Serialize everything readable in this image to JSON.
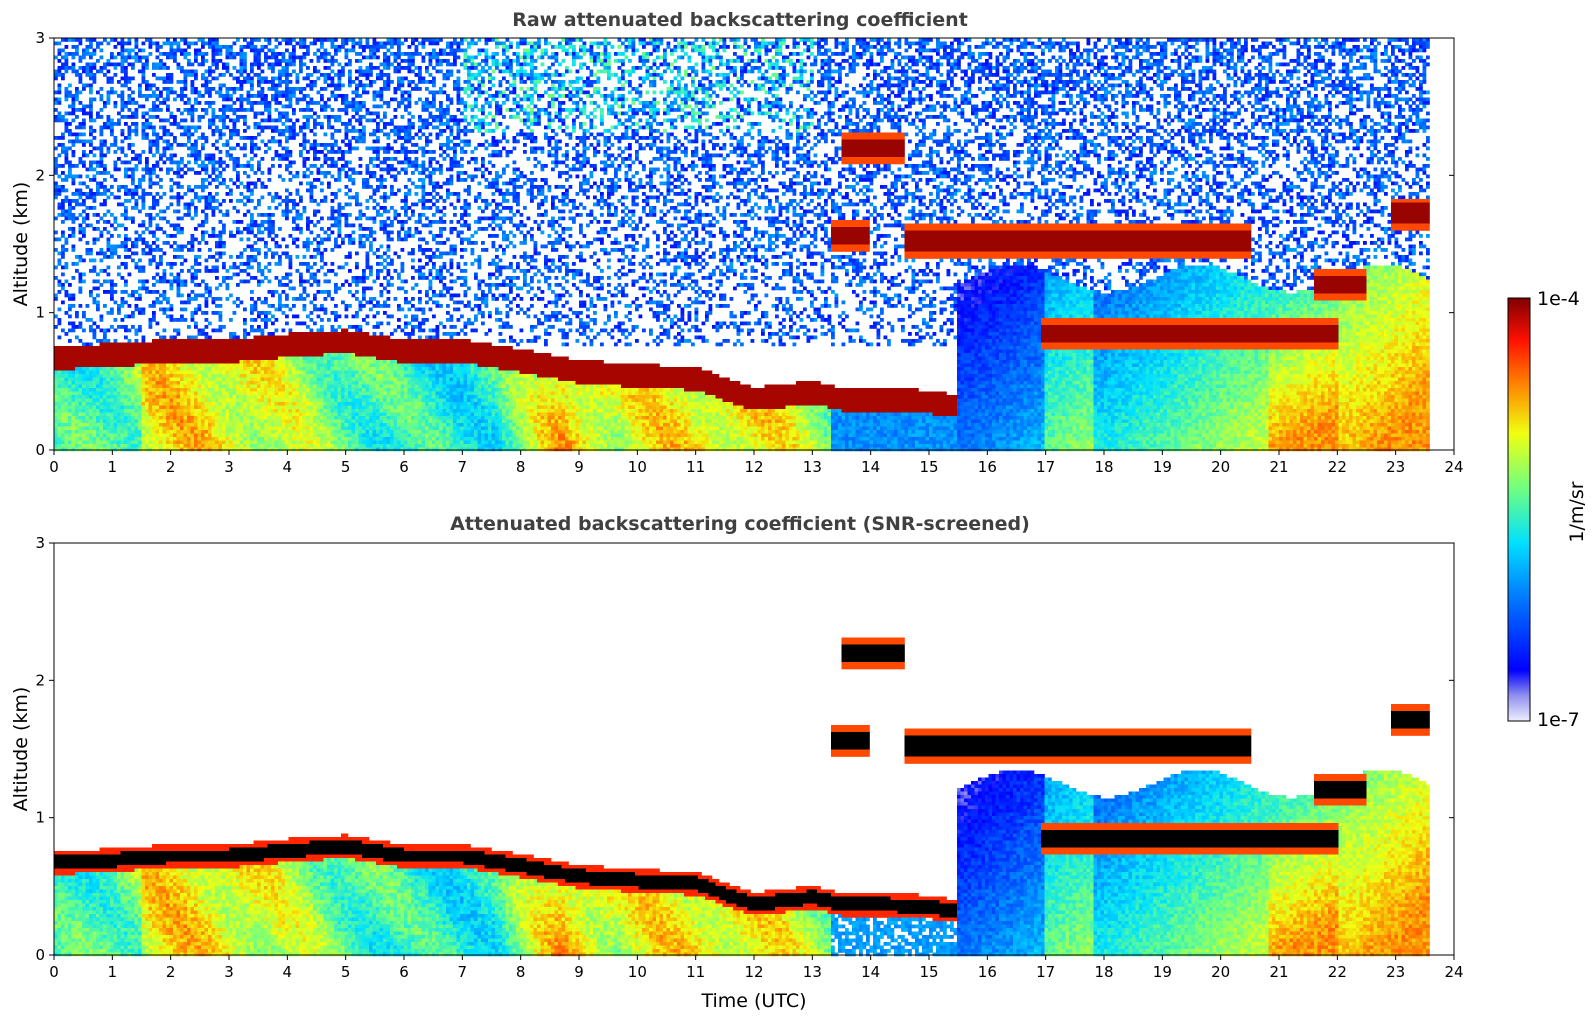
{
  "chart_data": [
    {
      "type": "heatmap",
      "title": "Raw attenuated backscattering coefficient",
      "xlabel": "",
      "ylabel": "Altitude (km)",
      "xlim": [
        0,
        24
      ],
      "ylim": [
        0,
        3
      ],
      "xticks": [
        "0",
        "1",
        "2",
        "3",
        "4",
        "5",
        "6",
        "7",
        "8",
        "9",
        "10",
        "11",
        "12",
        "13",
        "14",
        "15",
        "16",
        "17",
        "18",
        "19",
        "20",
        "21",
        "22",
        "23",
        "24"
      ],
      "yticks": [
        "0",
        "1",
        "2",
        "3"
      ],
      "data_end_time": 23.55,
      "colormap": "jet",
      "color_scale": "log",
      "cloud_base_layer_km": [
        [
          0,
          0.65
        ],
        [
          1,
          0.67
        ],
        [
          2,
          0.7
        ],
        [
          3,
          0.7
        ],
        [
          4,
          0.74
        ],
        [
          5,
          0.77
        ],
        [
          6,
          0.7
        ],
        [
          7,
          0.7
        ],
        [
          8,
          0.63
        ],
        [
          9,
          0.55
        ],
        [
          10,
          0.52
        ],
        [
          11,
          0.5
        ],
        [
          12,
          0.35
        ],
        [
          13,
          0.4
        ],
        [
          13.5,
          0.35
        ],
        [
          14,
          0.35
        ],
        [
          15,
          0.33
        ],
        [
          15.4,
          0.3
        ]
      ],
      "elevated_layers_km": [
        {
          "t0": 13.5,
          "t1": 14.6,
          "alt_km": 2.2
        },
        {
          "t0": 13.3,
          "t1": 14.0,
          "alt_km": 1.56
        },
        {
          "t0": 14.6,
          "t1": 20.5,
          "alt_km": 1.52
        },
        {
          "t0": 21.6,
          "t1": 22.5,
          "alt_km": 1.2
        },
        {
          "t0": 22.9,
          "t1": 23.55,
          "alt_km": 1.72
        },
        {
          "t0": 16.9,
          "t1": 22.0,
          "alt_km": 0.85
        }
      ]
    },
    {
      "type": "heatmap",
      "title": "Attenuated backscattering coefficient (SNR-screened)",
      "xlabel": "Time (UTC)",
      "ylabel": "Altitude (km)",
      "xlim": [
        0,
        24
      ],
      "ylim": [
        0,
        3
      ],
      "xticks": [
        "0",
        "1",
        "2",
        "3",
        "4",
        "5",
        "6",
        "7",
        "8",
        "9",
        "10",
        "11",
        "12",
        "13",
        "14",
        "15",
        "16",
        "17",
        "18",
        "19",
        "20",
        "21",
        "22",
        "23",
        "24"
      ],
      "yticks": [
        "0",
        "1",
        "2",
        "3"
      ],
      "data_end_time": 23.55,
      "colormap": "jet",
      "color_scale": "log",
      "saturated_color": "#000000"
    }
  ],
  "colorbar": {
    "label": "1/m/sr",
    "max_label": "1e-4",
    "min_label": "1e-7",
    "vmin": 1e-07,
    "vmax": 0.0001
  }
}
